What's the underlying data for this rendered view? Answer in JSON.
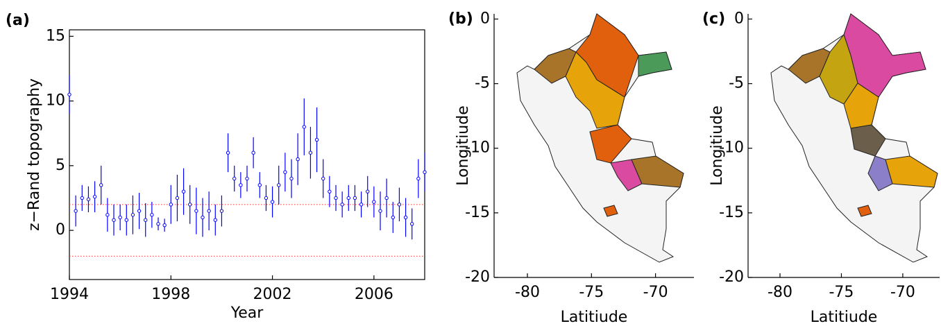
{
  "chart_data": [
    {
      "type": "errorbar",
      "panel_label": "(a)",
      "xlabel": "Year",
      "ylabel": "z−Rand topography",
      "x": [
        1994,
        1994.25,
        1994.5,
        1994.75,
        1995,
        1995.25,
        1995.5,
        1995.75,
        1996,
        1996.25,
        1996.5,
        1996.75,
        1997,
        1997.25,
        1997.5,
        1997.75,
        1998,
        1998.25,
        1998.5,
        1998.75,
        1999,
        1999.25,
        1999.5,
        1999.75,
        2000,
        2000.25,
        2000.5,
        2000.75,
        2001,
        2001.25,
        2001.5,
        2001.75,
        2002,
        2002.25,
        2002.5,
        2002.75,
        2003,
        2003.25,
        2003.5,
        2003.75,
        2004,
        2004.25,
        2004.5,
        2004.75,
        2005,
        2005.25,
        2005.5,
        2005.75,
        2006,
        2006.25,
        2006.5,
        2006.75,
        2007,
        2007.25,
        2007.5,
        2007.75,
        2008
      ],
      "values": [
        10.5,
        1.5,
        2.5,
        2.4,
        2.6,
        3.5,
        1.2,
        0.8,
        1.0,
        0.8,
        1.2,
        1.5,
        0.8,
        1.2,
        0.5,
        0.4,
        2.0,
        2.5,
        3.0,
        2.0,
        1.5,
        1.0,
        1.5,
        0.8,
        1.5,
        6.0,
        4.0,
        3.5,
        4.0,
        6.0,
        3.5,
        2.5,
        2.2,
        3.5,
        4.5,
        4.0,
        5.5,
        8.0,
        6.0,
        7.0,
        4.0,
        3.0,
        2.5,
        2.0,
        2.5,
        2.5,
        2.0,
        3.0,
        2.2,
        1.5,
        2.5,
        1.0,
        2.0,
        1.0,
        0.5,
        4.0,
        4.5
      ],
      "errors": [
        1.5,
        1.2,
        1.0,
        1.0,
        1.2,
        1.5,
        1.3,
        1.2,
        1.0,
        1.2,
        1.5,
        1.4,
        1.3,
        1.0,
        0.5,
        0.5,
        1.5,
        1.8,
        1.8,
        1.5,
        1.8,
        1.5,
        1.5,
        1.2,
        1.2,
        1.5,
        1.0,
        1.0,
        1.0,
        1.2,
        1.0,
        1.0,
        1.2,
        1.5,
        1.5,
        1.5,
        2.0,
        2.2,
        2.0,
        2.5,
        1.5,
        1.2,
        1.0,
        1.0,
        1.0,
        1.0,
        1.0,
        1.2,
        1.2,
        1.5,
        1.5,
        1.2,
        1.3,
        1.5,
        1.2,
        1.5,
        1.5
      ],
      "color": "#0000ff",
      "reference_lines": [
        -2,
        2
      ],
      "reference_color": "#ff3333",
      "xlim": [
        1994,
        2008
      ],
      "ylim": [
        -3.8,
        15.5
      ],
      "xticks": [
        1994,
        1998,
        2002,
        2006
      ],
      "yticks": [
        0,
        5,
        10,
        15
      ]
    },
    {
      "type": "map",
      "panel_label": "(b)",
      "xlabel": "Latitiude",
      "ylabel": "Longitiude",
      "xlim": [
        -82.6,
        -67
      ],
      "ylim": [
        -20,
        0.4
      ],
      "xticks": [
        -80,
        -75,
        -70
      ],
      "yticks": [
        0,
        -5,
        -10,
        -15,
        -20
      ]
    },
    {
      "type": "map",
      "panel_label": "(c)",
      "xlabel": "Latitiude",
      "ylabel": "Longitiude",
      "xlim": [
        -82.6,
        -67
      ],
      "ylim": [
        -20,
        0.4
      ],
      "xticks": [
        -80,
        -75,
        -70
      ],
      "yticks": [
        0,
        -5,
        -10,
        -15,
        -20
      ]
    }
  ]
}
